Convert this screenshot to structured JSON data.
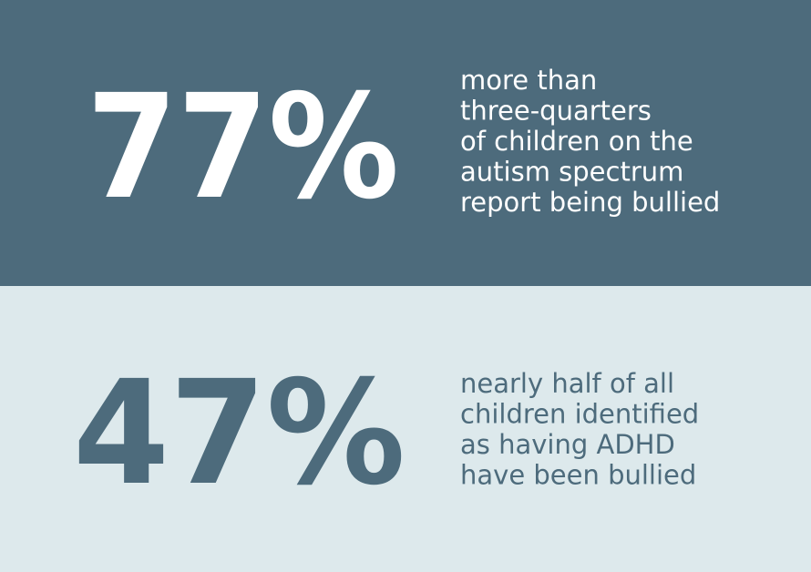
{
  "stats": [
    {
      "figure": "77%",
      "lines": [
        "more than",
        "three-quarters",
        "of children on the",
        "autism spectrum",
        "report being bullied"
      ]
    },
    {
      "figure": "47%",
      "lines": [
        "nearly half of all",
        "children identified",
        "as having ADHD",
        "have been bullied"
      ]
    }
  ]
}
